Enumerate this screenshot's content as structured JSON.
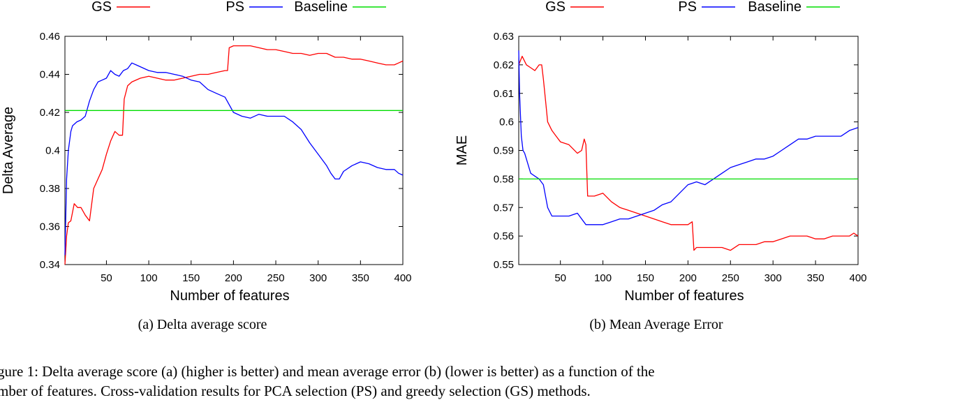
{
  "figure": {
    "caption_line1": "gure 1: Delta average score (a) (higher is better) and mean average error (b) (lower is better) as a function of the",
    "caption_line2": "mber of features. Cross-validation results for PCA selection (PS) and greedy selection (GS) methods."
  },
  "chart_data": [
    {
      "type": "line",
      "subcaption": "(a)  Delta average score",
      "xlabel": "Number of features",
      "ylabel": "Delta Average",
      "xlim": [
        1,
        400
      ],
      "ylim": [
        0.34,
        0.46
      ],
      "xticks": [
        50,
        100,
        150,
        200,
        250,
        300,
        350,
        400
      ],
      "yticks": [
        0.34,
        0.36,
        0.38,
        0.4,
        0.42,
        0.44,
        0.46
      ],
      "ytick_labels": [
        "0.34",
        "0.36",
        "0.38",
        "0.4",
        "0.42",
        "0.44",
        "0.46"
      ],
      "grid": false,
      "legend_position": "top",
      "series": [
        {
          "name": "GS",
          "color": "#ff0000",
          "x": [
            1,
            3,
            5,
            8,
            12,
            16,
            20,
            25,
            30,
            35,
            40,
            45,
            50,
            55,
            60,
            65,
            69,
            71,
            75,
            80,
            90,
            100,
            110,
            120,
            130,
            140,
            150,
            160,
            170,
            180,
            190,
            193,
            195,
            200,
            210,
            220,
            230,
            240,
            250,
            260,
            270,
            280,
            290,
            300,
            310,
            320,
            330,
            340,
            350,
            360,
            370,
            380,
            390,
            395,
            400
          ],
          "y": [
            0.34,
            0.355,
            0.362,
            0.363,
            0.372,
            0.37,
            0.37,
            0.366,
            0.363,
            0.38,
            0.385,
            0.39,
            0.398,
            0.405,
            0.41,
            0.408,
            0.408,
            0.427,
            0.434,
            0.436,
            0.438,
            0.439,
            0.438,
            0.437,
            0.437,
            0.438,
            0.439,
            0.44,
            0.44,
            0.441,
            0.442,
            0.442,
            0.454,
            0.455,
            0.455,
            0.455,
            0.454,
            0.453,
            0.453,
            0.452,
            0.451,
            0.451,
            0.45,
            0.451,
            0.451,
            0.449,
            0.449,
            0.448,
            0.448,
            0.447,
            0.446,
            0.445,
            0.445,
            0.446,
            0.447
          ]
        },
        {
          "name": "PS",
          "color": "#0000ff",
          "x": [
            1,
            3,
            5,
            8,
            10,
            15,
            20,
            25,
            30,
            35,
            40,
            45,
            50,
            55,
            60,
            65,
            70,
            75,
            80,
            85,
            90,
            100,
            110,
            120,
            130,
            140,
            150,
            160,
            170,
            180,
            190,
            200,
            210,
            220,
            230,
            240,
            250,
            260,
            270,
            280,
            290,
            300,
            305,
            310,
            315,
            320,
            325,
            330,
            340,
            350,
            360,
            370,
            380,
            390,
            395,
            400
          ],
          "y": [
            0.345,
            0.385,
            0.4,
            0.41,
            0.413,
            0.415,
            0.416,
            0.418,
            0.426,
            0.432,
            0.436,
            0.437,
            0.438,
            0.442,
            0.44,
            0.439,
            0.442,
            0.443,
            0.446,
            0.445,
            0.444,
            0.442,
            0.441,
            0.441,
            0.44,
            0.439,
            0.437,
            0.436,
            0.432,
            0.43,
            0.428,
            0.42,
            0.418,
            0.417,
            0.419,
            0.418,
            0.418,
            0.418,
            0.415,
            0.411,
            0.404,
            0.398,
            0.395,
            0.392,
            0.388,
            0.385,
            0.385,
            0.389,
            0.392,
            0.394,
            0.393,
            0.391,
            0.39,
            0.39,
            0.388,
            0.387
          ]
        },
        {
          "name": "Baseline",
          "color": "#00dd00",
          "x": [
            1,
            400
          ],
          "y": [
            0.421,
            0.421
          ]
        }
      ]
    },
    {
      "type": "line",
      "subcaption": "(b)  Mean Average Error",
      "xlabel": "Number of features",
      "ylabel": "MAE",
      "xlim": [
        1,
        400
      ],
      "ylim": [
        0.55,
        0.63
      ],
      "xticks": [
        50,
        100,
        150,
        200,
        250,
        300,
        350,
        400
      ],
      "yticks": [
        0.55,
        0.56,
        0.57,
        0.58,
        0.59,
        0.6,
        0.61,
        0.62,
        0.63
      ],
      "ytick_labels": [
        "0.55",
        "0.56",
        "0.57",
        "0.58",
        "0.59",
        "0.6",
        "0.61",
        "0.62",
        "0.63"
      ],
      "grid": false,
      "legend_position": "top",
      "series": [
        {
          "name": "GS",
          "color": "#ff0000",
          "x": [
            1,
            5,
            10,
            15,
            20,
            25,
            28,
            30,
            33,
            35,
            40,
            45,
            50,
            60,
            70,
            75,
            78,
            80,
            82,
            85,
            90,
            100,
            110,
            120,
            130,
            140,
            150,
            160,
            170,
            180,
            190,
            200,
            205,
            207,
            210,
            220,
            230,
            240,
            250,
            260,
            270,
            280,
            290,
            300,
            310,
            320,
            330,
            340,
            350,
            360,
            370,
            380,
            390,
            395,
            400
          ],
          "y": [
            0.62,
            0.623,
            0.62,
            0.619,
            0.618,
            0.62,
            0.62,
            0.615,
            0.606,
            0.6,
            0.597,
            0.595,
            0.593,
            0.592,
            0.589,
            0.59,
            0.594,
            0.592,
            0.574,
            0.574,
            0.574,
            0.575,
            0.572,
            0.57,
            0.569,
            0.568,
            0.567,
            0.566,
            0.565,
            0.564,
            0.564,
            0.564,
            0.565,
            0.555,
            0.556,
            0.556,
            0.556,
            0.556,
            0.555,
            0.557,
            0.557,
            0.557,
            0.558,
            0.558,
            0.559,
            0.56,
            0.56,
            0.56,
            0.559,
            0.559,
            0.56,
            0.56,
            0.56,
            0.561,
            0.56
          ]
        },
        {
          "name": "PS",
          "color": "#0000ff",
          "x": [
            1,
            2,
            4,
            6,
            8,
            10,
            15,
            20,
            25,
            30,
            35,
            40,
            50,
            60,
            70,
            80,
            90,
            100,
            110,
            120,
            130,
            140,
            150,
            160,
            170,
            180,
            190,
            200,
            210,
            220,
            230,
            240,
            250,
            260,
            270,
            280,
            290,
            300,
            310,
            320,
            330,
            340,
            350,
            360,
            370,
            380,
            390,
            400
          ],
          "y": [
            0.625,
            0.61,
            0.595,
            0.59,
            0.589,
            0.587,
            0.582,
            0.581,
            0.58,
            0.578,
            0.57,
            0.567,
            0.567,
            0.567,
            0.568,
            0.564,
            0.564,
            0.564,
            0.565,
            0.566,
            0.566,
            0.567,
            0.568,
            0.569,
            0.571,
            0.572,
            0.575,
            0.578,
            0.579,
            0.578,
            0.58,
            0.582,
            0.584,
            0.585,
            0.586,
            0.587,
            0.587,
            0.588,
            0.59,
            0.592,
            0.594,
            0.594,
            0.595,
            0.595,
            0.595,
            0.595,
            0.597,
            0.598
          ]
        },
        {
          "name": "Baseline",
          "color": "#00dd00",
          "x": [
            1,
            400
          ],
          "y": [
            0.58,
            0.58
          ]
        }
      ]
    }
  ]
}
